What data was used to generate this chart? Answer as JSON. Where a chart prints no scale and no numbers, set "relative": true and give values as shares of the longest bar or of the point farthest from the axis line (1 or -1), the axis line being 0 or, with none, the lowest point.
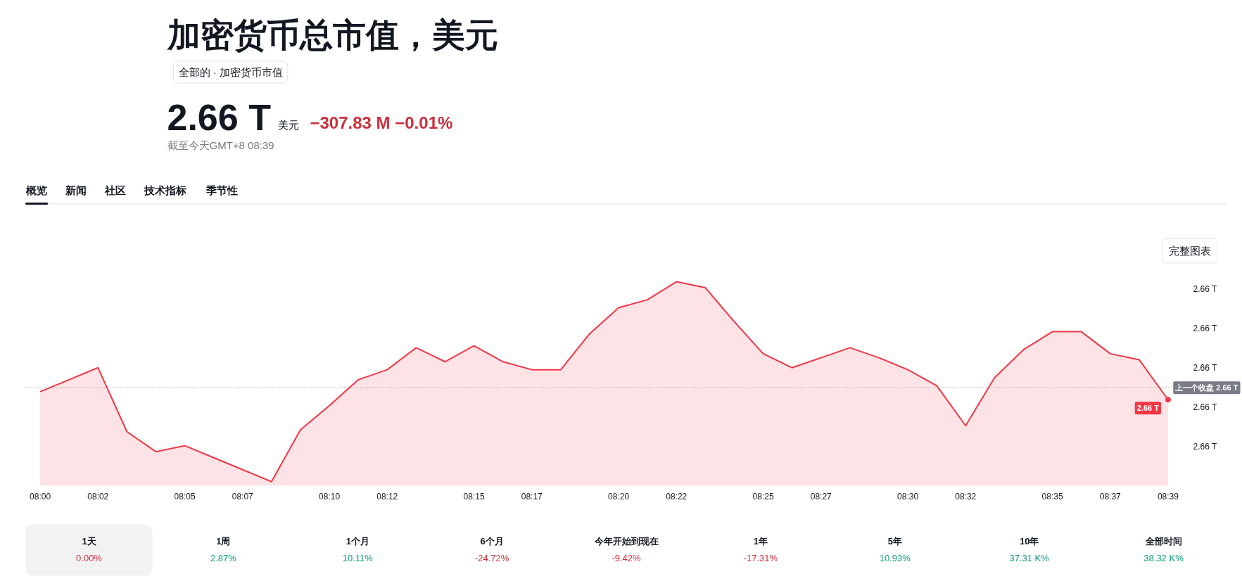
{
  "chart_data": {
    "type": "area",
    "title": "加密货币总市值，美元",
    "subtitle": "全部的 · 加密货币市值",
    "categories": [
      "08:00",
      null,
      "08:02",
      null,
      null,
      "08:05",
      null,
      "08:07",
      null,
      null,
      "08:10",
      null,
      "08:12",
      null,
      null,
      "08:15",
      null,
      "08:17",
      null,
      null,
      "08:20",
      null,
      "08:22",
      null,
      null,
      "08:25",
      null,
      "08:27",
      null,
      null,
      "08:30",
      null,
      "08:32",
      null,
      null,
      "08:35",
      null,
      "08:37",
      null,
      "08:39"
    ],
    "series": [
      {
        "color": "#f23645",
        "values": [
          0.45,
          0.51,
          0.57,
          0.25,
          0.15,
          0.18,
          0.12,
          0.06,
          0,
          0.26,
          0.38,
          0.51,
          0.56,
          0.67,
          0.6,
          0.68,
          0.6,
          0.56,
          0.56,
          0.74,
          0.87,
          0.91,
          1,
          0.97,
          0.8,
          0.64,
          0.57,
          0.62,
          0.67,
          0.62,
          0.56,
          0.48,
          0.28,
          0.52,
          0.66,
          0.75,
          0.75,
          0.64,
          0.61,
          0.41
        ]
      }
    ],
    "relative": true,
    "ref_lines": [
      {
        "axis": "y",
        "value": 0.47,
        "label": "上一个收盘 2.66 T",
        "color": "#787b86",
        "line_style": "dotted"
      }
    ],
    "annotations": [
      "2.66 T",
      "美元",
      "−307.83 M −0.01%",
      "截至今天GMT+8 08:39",
      "概览",
      "新闻",
      "社区",
      "技术指标",
      "季节性",
      "完整图表",
      "2.66 T",
      "2.66 T",
      "2.66 T",
      "2.66 T",
      "2.66 T",
      "1天",
      "0.00%",
      "1周",
      "2.87%",
      "1个月",
      "10.11%",
      "6个月",
      "-24.72%",
      "今年开始到现在",
      "-9.42%",
      "1年",
      "-17.31%",
      "5年",
      "10.93%",
      "10年",
      "37.31 K%",
      "全部时间",
      "38.32 K%",
      {
        "text": "2.66 T",
        "x": "08:39",
        "y": 0.41
      }
    ],
    "grid": false
  }
}
